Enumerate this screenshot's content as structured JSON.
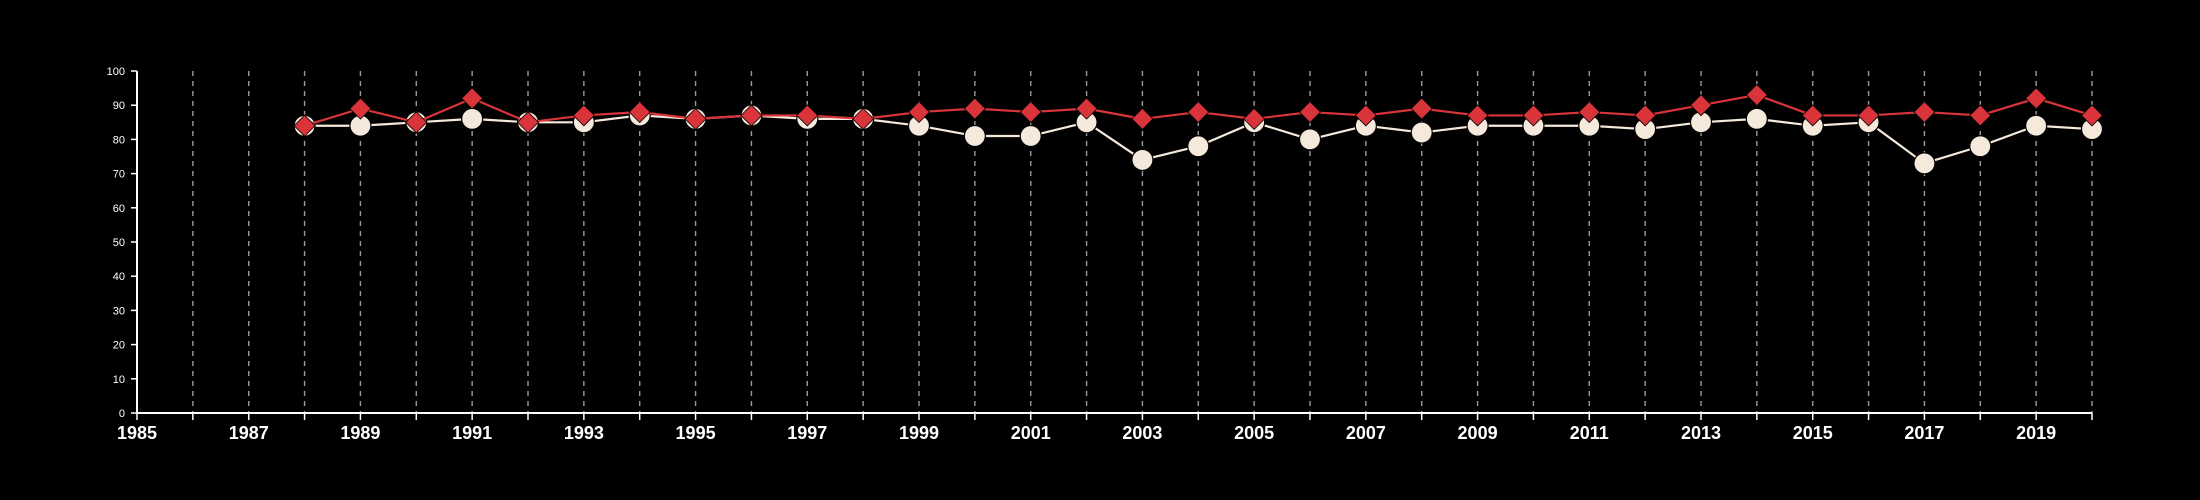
{
  "chart_data": {
    "type": "line",
    "title": "",
    "xlabel": "",
    "ylabel": "",
    "xlim": [
      1985,
      2020
    ],
    "ylim": [
      0,
      100
    ],
    "grid": {
      "x_vertical_dashed": true,
      "y": false
    },
    "legend": "none",
    "x_ticks": [
      1985,
      1987,
      1989,
      1991,
      1993,
      1995,
      1997,
      1999,
      2001,
      2003,
      2005,
      2007,
      2009,
      2011,
      2013,
      2015,
      2017,
      2019
    ],
    "y_ticks": [
      0,
      10,
      20,
      30,
      40,
      50,
      60,
      70,
      80,
      90,
      100
    ],
    "x": [
      1988,
      1989,
      1990,
      1991,
      1992,
      1993,
      1994,
      1995,
      1996,
      1997,
      1998,
      1999,
      2000,
      2001,
      2002,
      2003,
      2004,
      2005,
      2006,
      2007,
      2008,
      2009,
      2010,
      2011,
      2012,
      2013,
      2014,
      2015,
      2016,
      2017,
      2018,
      2019,
      2020
    ],
    "series": [
      {
        "marker": "diamond",
        "color": "#d9343a",
        "values": [
          84,
          89,
          85,
          92,
          85,
          87,
          88,
          86,
          87,
          87,
          86,
          88,
          89,
          88,
          89,
          86,
          88,
          86,
          88,
          87,
          89,
          87,
          87,
          88,
          87,
          90,
          93,
          87,
          87,
          88,
          87,
          92,
          87
        ]
      },
      {
        "marker": "circle",
        "color": "#f5e9dc",
        "values": [
          84,
          84,
          85,
          86,
          85,
          85,
          87,
          86,
          87,
          86,
          86,
          84,
          81,
          81,
          85,
          74,
          78,
          85,
          80,
          84,
          82,
          84,
          84,
          84,
          83,
          85,
          86,
          84,
          85,
          73,
          78,
          84,
          83
        ]
      }
    ]
  },
  "colors": {
    "background": "#000000",
    "axis": "#ffffff",
    "grid": "#9a9a9a"
  }
}
